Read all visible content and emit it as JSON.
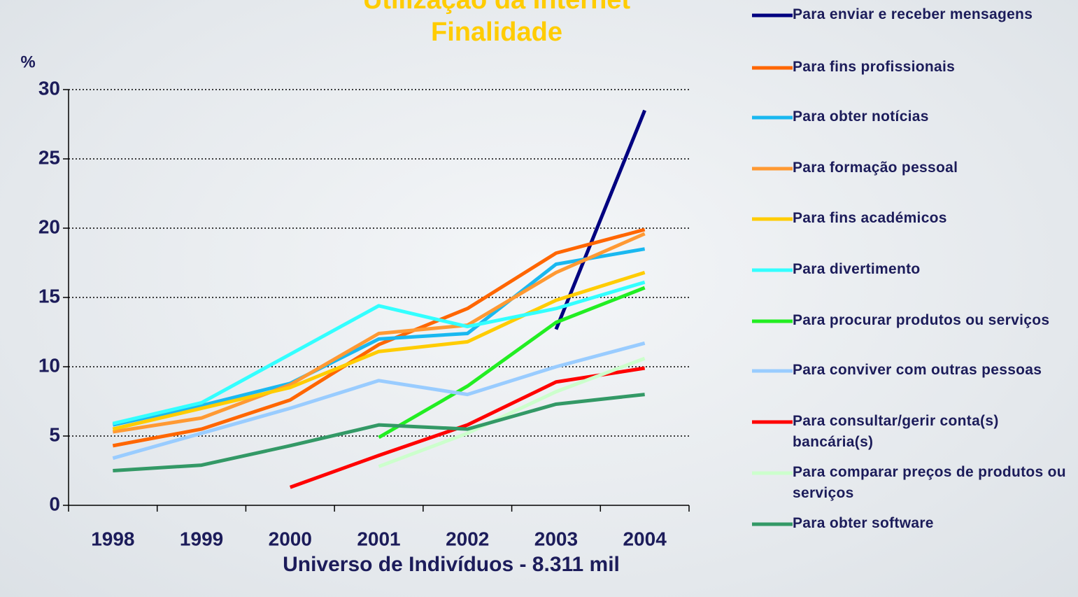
{
  "chart_data": {
    "type": "line",
    "title": "Utilização da Internet",
    "subtitle": "Finalidade",
    "y_label": "%",
    "x_label": "Universo de Indivíduos - 8.311 mil",
    "categories": [
      "1998",
      "1999",
      "2000",
      "2001",
      "2002",
      "2003",
      "2004"
    ],
    "ylim": [
      0,
      30
    ],
    "yticks": [
      0,
      5,
      10,
      15,
      20,
      25,
      30
    ],
    "grid": true,
    "legend": "right",
    "series": [
      {
        "name": "Para enviar e receber mensagens",
        "color": "#000080",
        "values": [
          null,
          null,
          null,
          null,
          null,
          12.7,
          28.5
        ]
      },
      {
        "name": "Para fins profissionais",
        "color": "#ff6600",
        "values": [
          4.3,
          5.5,
          7.6,
          11.6,
          14.2,
          18.2,
          19.9
        ]
      },
      {
        "name": "Para obter notícias",
        "color": "#1ab8f0",
        "values": [
          5.8,
          7.2,
          8.8,
          12.0,
          12.4,
          17.4,
          18.5
        ]
      },
      {
        "name": "Para formação pessoal",
        "color": "#ff9933",
        "values": [
          5.3,
          6.3,
          8.7,
          12.4,
          13.0,
          16.8,
          19.6
        ]
      },
      {
        "name": "Para fins académicos",
        "color": "#ffcc00",
        "values": [
          5.5,
          7.0,
          8.5,
          11.1,
          11.8,
          14.8,
          16.8
        ]
      },
      {
        "name": "Para divertimento",
        "color": "#33ffff",
        "values": [
          5.9,
          7.4,
          10.9,
          14.4,
          12.9,
          14.2,
          16.1
        ]
      },
      {
        "name": "Para procurar produtos ou serviços",
        "color": "#22ee22",
        "values": [
          null,
          null,
          null,
          4.9,
          8.6,
          13.2,
          15.7
        ]
      },
      {
        "name": "Para conviver com outras pessoas",
        "color": "#99ccff",
        "values": [
          3.4,
          5.2,
          7.0,
          9.0,
          8.0,
          10.0,
          11.7
        ]
      },
      {
        "name": "Para consultar/gerir conta(s) bancária(s)",
        "color": "#ff0000",
        "values": [
          null,
          null,
          1.3,
          3.6,
          5.8,
          8.9,
          9.9
        ]
      },
      {
        "name": "Para comparar preços de produtos ou serviços",
        "color": "#ccffcc",
        "values": [
          null,
          null,
          null,
          2.8,
          5.2,
          8.2,
          10.6
        ]
      },
      {
        "name": "Para obter software",
        "color": "#339966",
        "values": [
          2.5,
          2.9,
          4.3,
          5.8,
          5.5,
          7.3,
          8.0
        ]
      }
    ]
  }
}
